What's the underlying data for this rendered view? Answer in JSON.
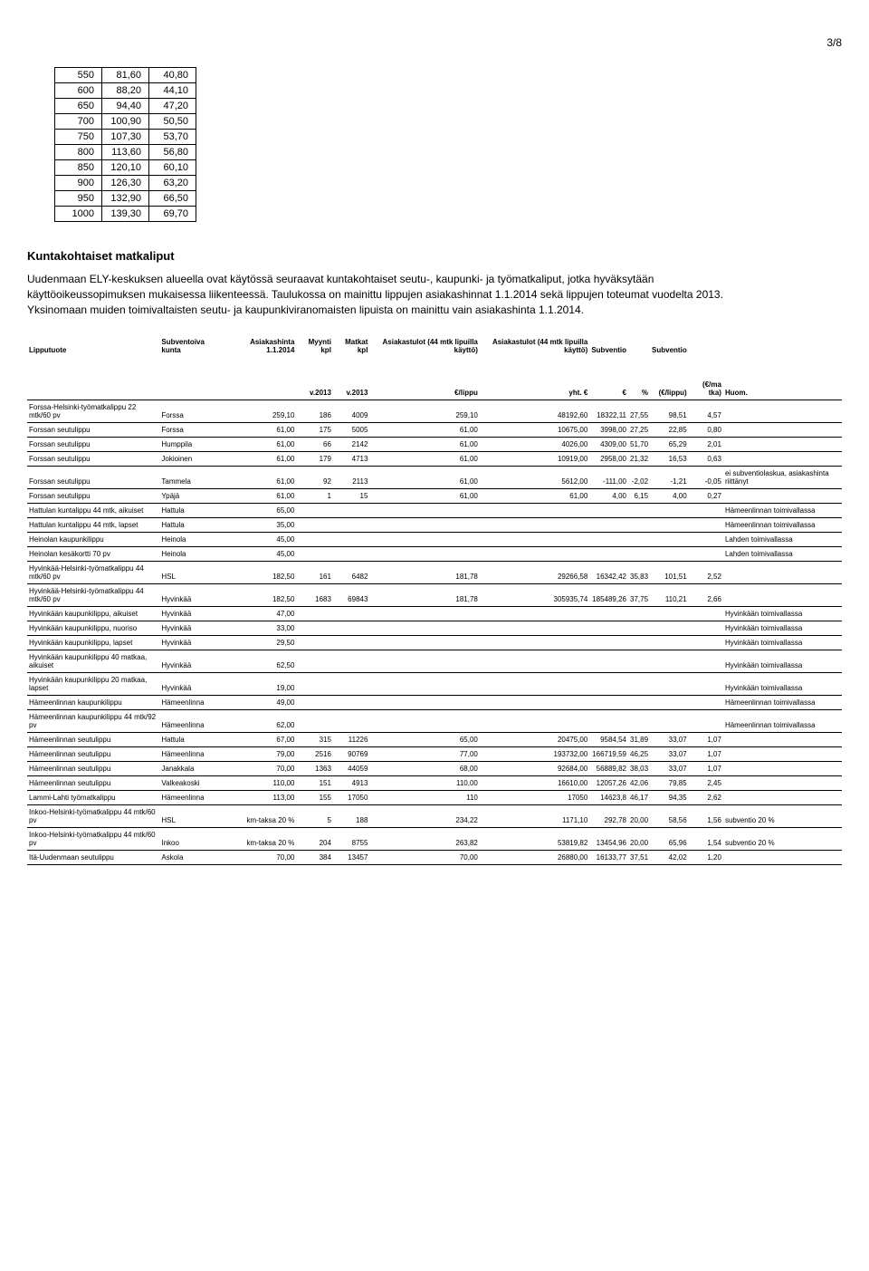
{
  "page_number": "3/8",
  "small_table": {
    "rows": [
      [
        "550",
        "81,60",
        "40,80"
      ],
      [
        "600",
        "88,20",
        "44,10"
      ],
      [
        "650",
        "94,40",
        "47,20"
      ],
      [
        "700",
        "100,90",
        "50,50"
      ],
      [
        "750",
        "107,30",
        "53,70"
      ],
      [
        "800",
        "113,60",
        "56,80"
      ],
      [
        "850",
        "120,10",
        "60,10"
      ],
      [
        "900",
        "126,30",
        "63,20"
      ],
      [
        "950",
        "132,90",
        "66,50"
      ],
      [
        "1000",
        "139,30",
        "69,70"
      ]
    ]
  },
  "section_title": "Kuntakohtaiset matkaliput",
  "body_text": "Uudenmaan ELY-keskuksen alueella ovat käytössä seuraavat kuntakohtaiset seutu-, kaupunki- ja työmatkaliput, jotka hyväksytään käyttöoikeussopimuksen mukaisessa liikenteessä. Taulukossa on mainittu lippujen asiakashinnat 1.1.2014 sekä lippujen toteumat vuodelta 2013. Yksinomaan muiden toimivaltaisten seutu- ja kaupunkiviranomaisten lipuista on mainittu vain asiakashinta 1.1.2014.",
  "columns": [
    "Lipputuote",
    "Subventoiva kunta",
    "Asiakashinta 1.1.2014",
    "Myynti kpl",
    "Matkat kpl",
    "Asiakastulot (44 mtk lipuilla käyttö)",
    "Asiakastulot (44 mtk lipuilla käyttö)",
    "Subventio",
    "",
    "Subventio",
    "",
    ""
  ],
  "subcolumns": [
    "",
    "",
    "",
    "v.2013",
    "v.2013",
    "€/lippu",
    "yht. €",
    "€",
    "%",
    "(€/lippu)",
    "(€/ma tka)",
    "Huom."
  ],
  "rows": [
    {
      "c": [
        "Forssa-Helsinki-työmatkalippu 22 mtk/60 pv",
        "Forssa",
        "259,10",
        "186",
        "4009",
        "259,10",
        "48192,60",
        "18322,11",
        "27,55",
        "98,51",
        "4,57",
        ""
      ]
    },
    {
      "c": [
        "Forssan seutulippu",
        "Forssa",
        "61,00",
        "175",
        "5005",
        "61,00",
        "10675,00",
        "3998,00",
        "27,25",
        "22,85",
        "0,80",
        ""
      ]
    },
    {
      "c": [
        "Forssan seutulippu",
        "Humppila",
        "61,00",
        "66",
        "2142",
        "61,00",
        "4026,00",
        "4309,00",
        "51,70",
        "65,29",
        "2,01",
        ""
      ]
    },
    {
      "c": [
        "Forssan seutulippu",
        "Jokioinen",
        "61,00",
        "179",
        "4713",
        "61,00",
        "10919,00",
        "2958,00",
        "21,32",
        "16,53",
        "0,63",
        ""
      ]
    },
    {
      "c": [
        "Forssan seutulippu",
        "Tammela",
        "61,00",
        "92",
        "2113",
        "61,00",
        "5612,00",
        "-111,00",
        "-2,02",
        "-1,21",
        "-0,05",
        "ei subventiolaskua, asiakashinta riittänyt"
      ]
    },
    {
      "c": [
        "Forssan seutulippu",
        "Ypäjä",
        "61,00",
        "1",
        "15",
        "61,00",
        "61,00",
        "4,00",
        "6,15",
        "4,00",
        "0,27",
        ""
      ]
    },
    {
      "c": [
        "Hattulan kuntalippu 44 mtk, aikuiset",
        "Hattula",
        "65,00",
        "",
        "",
        "",
        "",
        "",
        "",
        "",
        "",
        "Hämeenlinnan toimivallassa"
      ]
    },
    {
      "c": [
        "Hattulan kuntalippu 44 mtk, lapset",
        "Hattula",
        "35,00",
        "",
        "",
        "",
        "",
        "",
        "",
        "",
        "",
        "Hämeenlinnan toimivallassa"
      ]
    },
    {
      "c": [
        "Heinolan kaupunkilippu",
        "Heinola",
        "45,00",
        "",
        "",
        "",
        "",
        "",
        "",
        "",
        "",
        "Lahden toimivallassa"
      ]
    },
    {
      "c": [
        "Heinolan kesäkortti 70 pv",
        "Heinola",
        "45,00",
        "",
        "",
        "",
        "",
        "",
        "",
        "",
        "",
        "Lahden toimivallassa"
      ]
    },
    {
      "c": [
        "Hyvinkää-Helsinki-työmatkalippu 44 mtk/60 pv",
        "HSL",
        "182,50",
        "161",
        "6482",
        "181,78",
        "29266,58",
        "16342,42",
        "35,83",
        "101,51",
        "2,52",
        ""
      ]
    },
    {
      "c": [
        "Hyvinkää-Helsinki-työmatkalippu 44 mtk/60 pv",
        "Hyvinkää",
        "182,50",
        "1683",
        "69843",
        "181,78",
        "305935,74",
        "185489,26",
        "37,75",
        "110,21",
        "2,66",
        ""
      ]
    },
    {
      "c": [
        "Hyvinkään kaupunkilippu, aikuiset",
        "Hyvinkää",
        "47,00",
        "",
        "",
        "",
        "",
        "",
        "",
        "",
        "",
        "Hyvinkään toimivallassa"
      ]
    },
    {
      "c": [
        "Hyvinkään kaupunkilippu, nuoriso",
        "Hyvinkää",
        "33,00",
        "",
        "",
        "",
        "",
        "",
        "",
        "",
        "",
        "Hyvinkään toimivallassa"
      ]
    },
    {
      "c": [
        "Hyvinkään kaupunkilippu, lapset",
        "Hyvinkää",
        "29,50",
        "",
        "",
        "",
        "",
        "",
        "",
        "",
        "",
        "Hyvinkään toimivallassa"
      ]
    },
    {
      "c": [
        "Hyvinkään kaupunkilippu 40 matkaa, aikuiset",
        "Hyvinkää",
        "62,50",
        "",
        "",
        "",
        "",
        "",
        "",
        "",
        "",
        "Hyvinkään toimivallassa"
      ]
    },
    {
      "c": [
        "Hyvinkään kaupunkilippu 20 matkaa, lapset",
        "Hyvinkää",
        "19,00",
        "",
        "",
        "",
        "",
        "",
        "",
        "",
        "",
        "Hyvinkään toimivallassa"
      ]
    },
    {
      "c": [
        "Hämeenlinnan kaupunkilippu",
        "Hämeenlinna",
        "49,00",
        "",
        "",
        "",
        "",
        "",
        "",
        "",
        "",
        "Hämeenlinnan toimivallassa"
      ]
    },
    {
      "c": [
        "Hämeenlinnan kaupunkilippu 44 mtk/92 pv",
        "Hämeenlinna",
        "62,00",
        "",
        "",
        "",
        "",
        "",
        "",
        "",
        "",
        "Hämeenlinnan toimivallassa"
      ]
    },
    {
      "c": [
        "Hämeenlinnan seutulippu",
        "Hattula",
        "67,00",
        "315",
        "11226",
        "65,00",
        "20475,00",
        "9584,54",
        "31,89",
        "33,07",
        "1,07",
        ""
      ]
    },
    {
      "c": [
        "Hämeenlinnan seutulippu",
        "Hämeenlinna",
        "79,00",
        "2516",
        "90769",
        "77,00",
        "193732,00",
        "166719,59",
        "46,25",
        "33,07",
        "1,07",
        ""
      ]
    },
    {
      "c": [
        "Hämeenlinnan seutulippu",
        "Janakkala",
        "70,00",
        "1363",
        "44059",
        "68,00",
        "92684,00",
        "56889,82",
        "38,03",
        "33,07",
        "1,07",
        ""
      ]
    },
    {
      "c": [
        "Hämeenlinnan seutulippu",
        "Valkeakoski",
        "110,00",
        "151",
        "4913",
        "110,00",
        "16610,00",
        "12057,26",
        "42,06",
        "79,85",
        "2,45",
        ""
      ]
    },
    {
      "c": [
        "Lammi-Lahti työmatkalippu",
        "Hämeenlinna",
        "113,00",
        "155",
        "17050",
        "110",
        "17050",
        "14623,8",
        "46,17",
        "94,35",
        "2,62",
        ""
      ]
    },
    {
      "c": [
        "Inkoo-Helsinki-työmatkalippu 44 mtk/60 pv",
        "HSL",
        "km-taksa 20 %",
        "5",
        "188",
        "234,22",
        "1171,10",
        "292,78",
        "20,00",
        "58,56",
        "1,56",
        "subventio 20 %"
      ]
    },
    {
      "c": [
        "Inkoo-Helsinki-työmatkalippu 44 mtk/60 pv",
        "Inkoo",
        "km-taksa 20 %",
        "204",
        "8755",
        "263,82",
        "53819,82",
        "13454,96",
        "20,00",
        "65,96",
        "1,54",
        "subventio 20 %"
      ]
    },
    {
      "c": [
        "Itä-Uudenmaan seutulippu",
        "Askola",
        "70,00",
        "384",
        "13457",
        "70,00",
        "26880,00",
        "16133,77",
        "37,51",
        "42,02",
        "1,20",
        ""
      ]
    }
  ]
}
